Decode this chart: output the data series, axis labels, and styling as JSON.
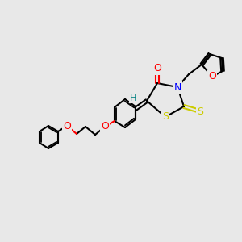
{
  "bg_color": "#e8e8e8",
  "bond_color": "#000000",
  "bond_width": 1.5,
  "atom_colors": {
    "O": "#ff0000",
    "N": "#0000ff",
    "S": "#cccc00",
    "H": "#008080",
    "C": "#000000"
  },
  "font_size": 8
}
